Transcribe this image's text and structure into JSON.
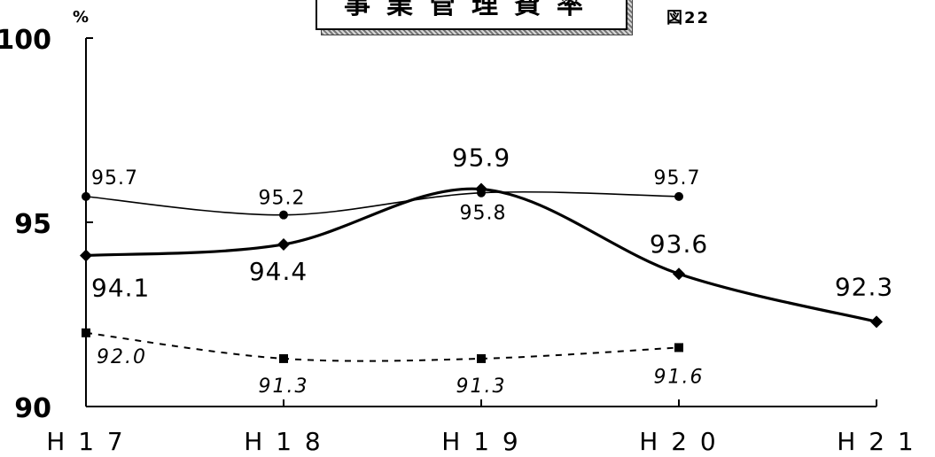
{
  "title": "事業管理費率",
  "figure_label": "図22",
  "chart_data": {
    "type": "line",
    "categories": [
      "H17",
      "H18",
      "H19",
      "H20",
      "H21"
    ],
    "category_labels": [
      "H 1 7",
      "H 1 8",
      "H 1 9",
      "H 2 0",
      "H 2 1"
    ],
    "y_unit_label": "%",
    "ylim": [
      90,
      100
    ],
    "y_ticks": [
      90,
      95,
      100
    ],
    "grid": false,
    "series": [
      {
        "values": [
          95.7,
          95.2,
          95.8,
          95.7,
          null
        ],
        "labels": [
          "95.7",
          "95.2",
          "95.8",
          "95.7",
          ""
        ],
        "style": "thin-solid",
        "marker": "circle"
      },
      {
        "values": [
          94.1,
          94.4,
          95.9,
          93.6,
          92.3
        ],
        "labels": [
          "94.1",
          "94.4",
          "95.9",
          "93.6",
          "92.3"
        ],
        "style": "thick-solid",
        "marker": "diamond"
      },
      {
        "values": [
          92.0,
          91.3,
          91.3,
          91.6,
          null
        ],
        "labels": [
          "92.0",
          "91.3",
          "91.3",
          "91.6",
          ""
        ],
        "style": "dashed",
        "marker": "square"
      }
    ]
  }
}
